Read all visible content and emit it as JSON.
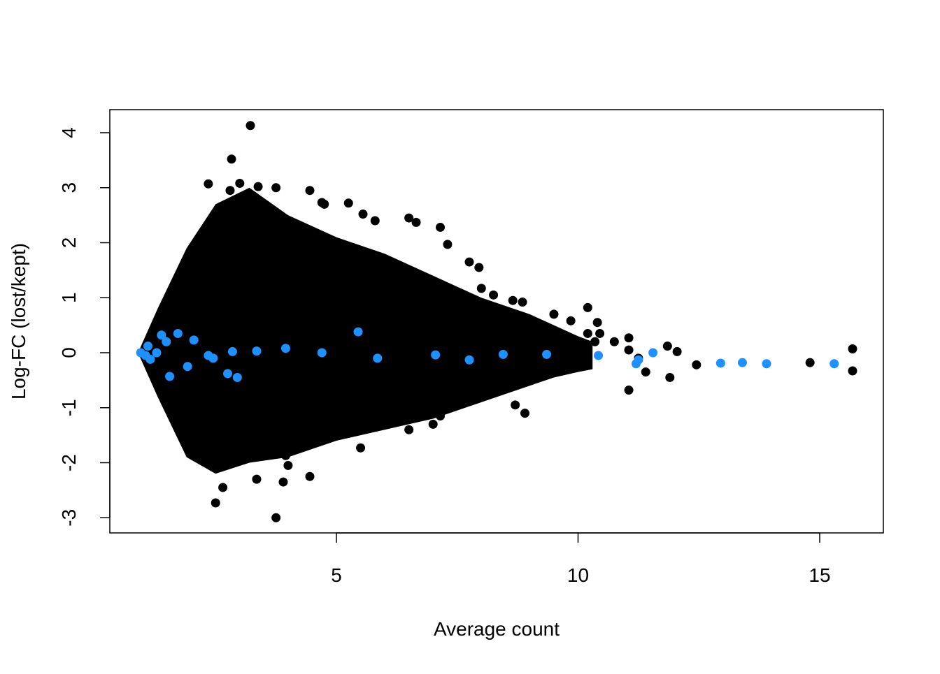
{
  "chart_data": {
    "type": "scatter",
    "title": "",
    "xlabel": "Average count",
    "ylabel": "Log-FC (lost/kept)",
    "xlim": [
      0.5,
      16.5
    ],
    "ylim": [
      -3.15,
      4.6
    ],
    "x_ticks": [
      5,
      10,
      15
    ],
    "y_ticks": [
      -3,
      -2,
      -1,
      0,
      1,
      2,
      3,
      4
    ],
    "grid": false,
    "legend": "none",
    "colors": {
      "background_points": "#000000",
      "highlight_points": "#1E90FF",
      "frame": "#000000"
    },
    "dense_cloud": {
      "description_color": "#000000",
      "envelope_upper": [
        [
          0.92,
          0.05
        ],
        [
          1.3,
          0.8
        ],
        [
          1.9,
          1.9
        ],
        [
          2.5,
          2.7
        ],
        [
          3.2,
          3.0
        ],
        [
          4.0,
          2.5
        ],
        [
          5.0,
          2.1
        ],
        [
          6.0,
          1.8
        ],
        [
          7.0,
          1.4
        ],
        [
          8.0,
          1.0
        ],
        [
          9.0,
          0.7
        ],
        [
          9.5,
          0.5
        ],
        [
          10.0,
          0.3
        ],
        [
          10.3,
          0.2
        ]
      ],
      "envelope_lower": [
        [
          0.92,
          -0.05
        ],
        [
          1.3,
          -0.8
        ],
        [
          1.9,
          -1.9
        ],
        [
          2.5,
          -2.2
        ],
        [
          3.2,
          -2.0
        ],
        [
          4.0,
          -1.9
        ],
        [
          5.0,
          -1.6
        ],
        [
          6.0,
          -1.4
        ],
        [
          7.0,
          -1.2
        ],
        [
          8.0,
          -0.9
        ],
        [
          9.0,
          -0.6
        ],
        [
          9.5,
          -0.45
        ],
        [
          10.0,
          -0.35
        ],
        [
          10.3,
          -0.3
        ]
      ]
    },
    "series": [
      {
        "color": "#000000",
        "x": [
          3.22,
          2.83,
          2.35,
          3.0,
          3.38,
          3.75,
          2.8,
          4.45,
          4.7,
          4.75,
          5.25,
          5.55,
          6.5,
          5.8,
          6.65,
          7.15,
          7.3,
          7.75,
          7.95,
          8.25,
          8.0,
          8.85,
          8.65,
          9.5,
          9.85,
          10.2,
          10.4,
          10.2,
          10.35,
          10.45,
          10.75,
          11.05,
          11.05,
          11.25,
          11.4,
          11.85,
          11.9,
          12.05,
          12.45,
          11.05,
          14.8,
          15.68,
          15.68,
          3.75,
          3.9,
          4.45,
          2.5,
          2.65,
          3.35,
          3.95,
          4.0,
          5.5,
          6.5,
          7.0,
          7.15,
          7.55,
          8.7,
          8.9
        ],
        "y": [
          4.13,
          3.52,
          3.07,
          3.08,
          3.02,
          3.0,
          2.95,
          2.95,
          2.73,
          2.7,
          2.72,
          2.52,
          2.45,
          2.4,
          2.37,
          2.28,
          1.97,
          1.65,
          1.55,
          1.05,
          1.17,
          0.92,
          0.95,
          0.7,
          0.58,
          0.82,
          0.55,
          0.35,
          0.2,
          0.35,
          0.2,
          0.27,
          0.05,
          -0.1,
          -0.35,
          0.12,
          -0.45,
          0.02,
          -0.22,
          -0.68,
          -0.18,
          0.07,
          -0.33,
          -3.0,
          -2.35,
          -2.25,
          -2.73,
          -2.45,
          -2.3,
          -1.87,
          -2.05,
          -1.73,
          -1.4,
          -1.3,
          -1.15,
          -0.7,
          -0.95,
          -1.1
        ]
      },
      {
        "color": "#1E90FF",
        "x": [
          0.95,
          1.05,
          1.1,
          1.15,
          1.28,
          1.38,
          1.48,
          1.55,
          1.72,
          1.92,
          2.05,
          2.35,
          2.45,
          2.75,
          2.85,
          2.95,
          3.35,
          3.95,
          4.7,
          5.45,
          5.85,
          7.05,
          7.75,
          8.45,
          9.35,
          10.42,
          11.2,
          11.25,
          11.55,
          12.95,
          13.4,
          13.9,
          15.3
        ],
        "y": [
          0.0,
          -0.05,
          0.12,
          -0.12,
          0.0,
          0.32,
          0.2,
          -0.43,
          0.35,
          -0.25,
          0.23,
          -0.05,
          -0.1,
          -0.38,
          0.02,
          -0.45,
          0.03,
          0.08,
          0.0,
          0.38,
          -0.1,
          -0.04,
          -0.13,
          -0.03,
          -0.03,
          -0.05,
          -0.2,
          -0.13,
          0.0,
          -0.19,
          -0.18,
          -0.2,
          -0.2
        ]
      }
    ]
  }
}
